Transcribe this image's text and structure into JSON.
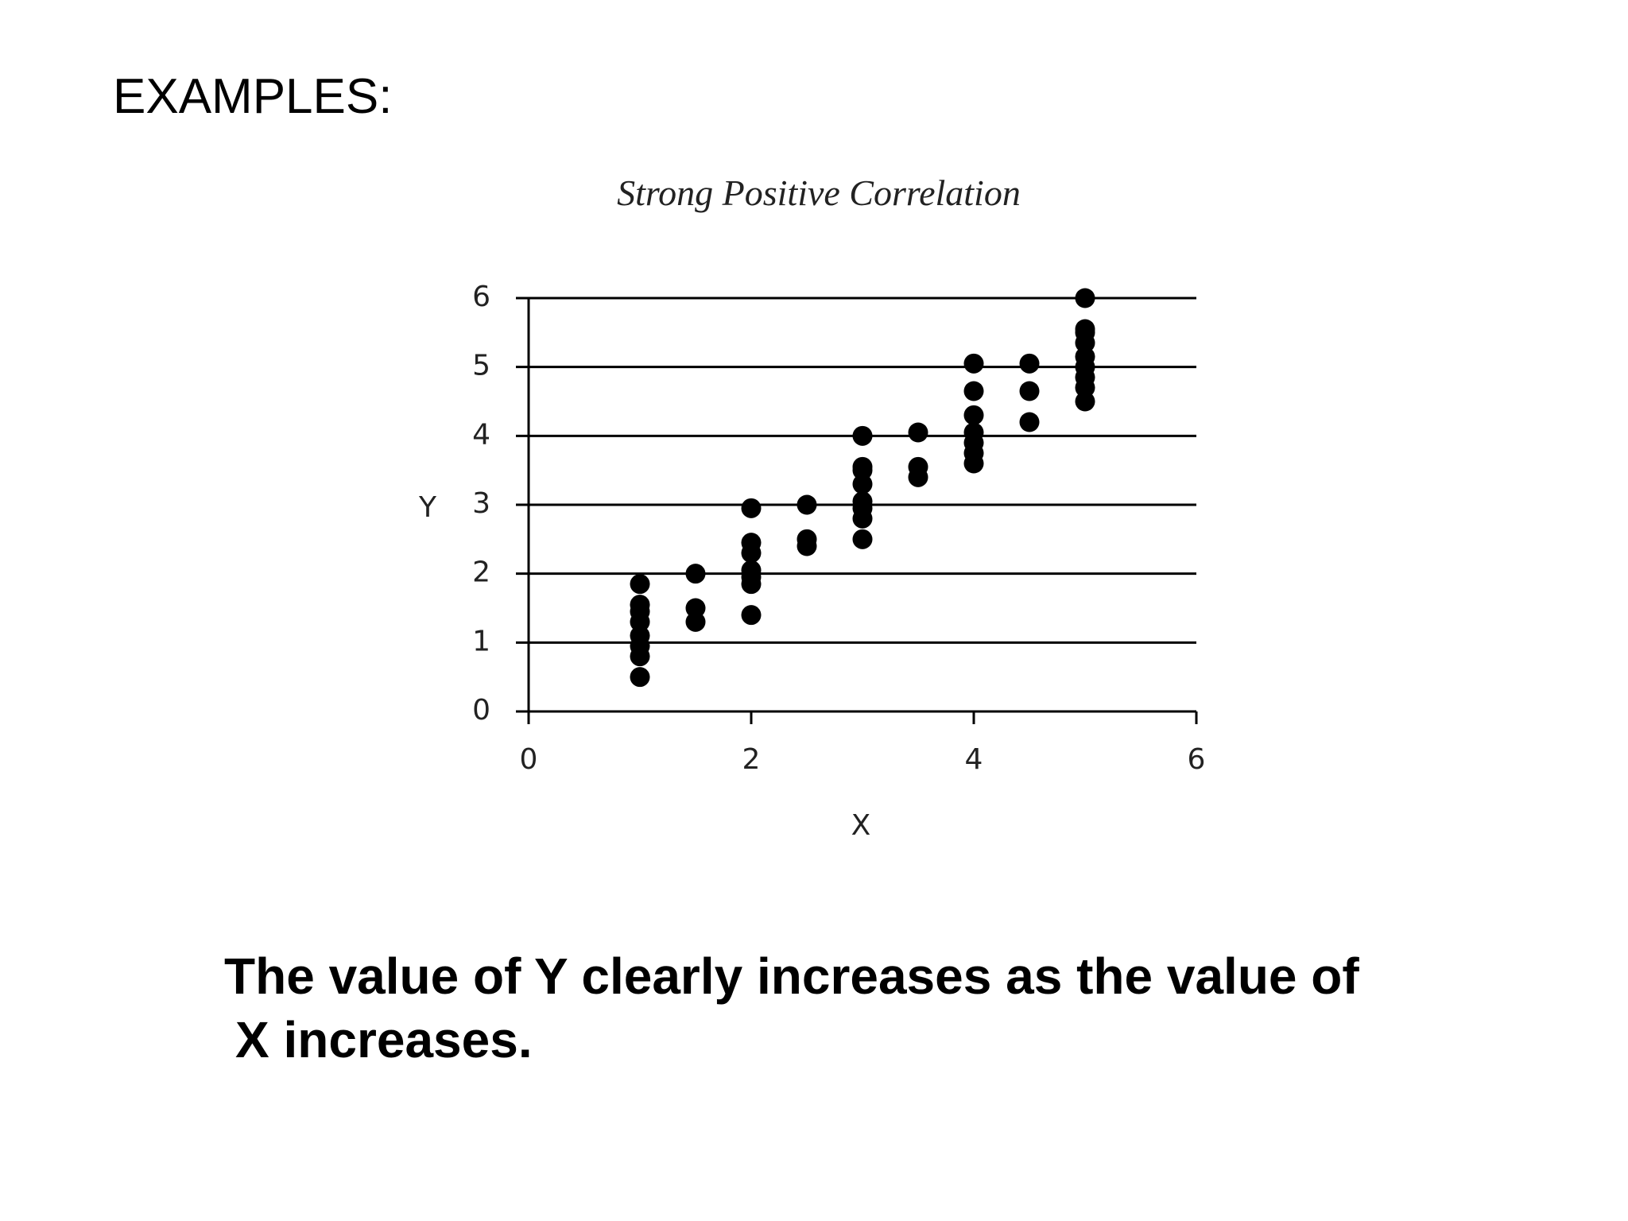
{
  "slide": {
    "heading": "EXAMPLES:",
    "caption_line1": "The value of Y clearly increases as the value of",
    "caption_line2": "X increases."
  },
  "chart_data": {
    "type": "scatter",
    "title": "Strong Positive Correlation",
    "xlabel": "X",
    "ylabel": "Y",
    "xlim": [
      0,
      6
    ],
    "ylim": [
      0,
      6
    ],
    "xticks": [
      0,
      2,
      4,
      6
    ],
    "yticks": [
      0,
      1,
      2,
      3,
      4,
      5,
      6
    ],
    "grid": "horizontal",
    "colors": {
      "points": "#000000",
      "grid": "#000000"
    },
    "series": [
      {
        "points": [
          [
            1,
            0.5
          ],
          [
            1,
            0.8
          ],
          [
            1,
            0.95
          ],
          [
            1,
            1.1
          ],
          [
            1,
            1.3
          ],
          [
            1,
            1.45
          ],
          [
            1,
            1.55
          ],
          [
            1,
            1.85
          ],
          [
            1.5,
            1.3
          ],
          [
            1.5,
            1.5
          ],
          [
            1.5,
            2.0
          ],
          [
            2,
            1.4
          ],
          [
            2,
            1.85
          ],
          [
            2,
            1.95
          ],
          [
            2,
            2.05
          ],
          [
            2,
            2.3
          ],
          [
            2,
            2.45
          ],
          [
            2,
            2.95
          ],
          [
            2.5,
            2.4
          ],
          [
            2.5,
            2.5
          ],
          [
            2.5,
            3.0
          ],
          [
            3,
            2.5
          ],
          [
            3,
            2.8
          ],
          [
            3,
            2.95
          ],
          [
            3,
            3.05
          ],
          [
            3,
            3.3
          ],
          [
            3,
            3.5
          ],
          [
            3,
            3.55
          ],
          [
            3,
            4.0
          ],
          [
            3.5,
            3.4
          ],
          [
            3.5,
            3.55
          ],
          [
            3.5,
            4.05
          ],
          [
            4,
            3.6
          ],
          [
            4,
            3.75
          ],
          [
            4,
            3.9
          ],
          [
            4,
            4.05
          ],
          [
            4,
            4.3
          ],
          [
            4,
            4.65
          ],
          [
            4,
            5.05
          ],
          [
            4.5,
            4.2
          ],
          [
            4.5,
            4.65
          ],
          [
            4.5,
            5.05
          ],
          [
            5,
            4.5
          ],
          [
            5,
            4.7
          ],
          [
            5,
            4.85
          ],
          [
            5,
            5.0
          ],
          [
            5,
            5.15
          ],
          [
            5,
            5.35
          ],
          [
            5,
            5.5
          ],
          [
            5,
            5.55
          ],
          [
            5,
            6.0
          ]
        ]
      }
    ]
  }
}
